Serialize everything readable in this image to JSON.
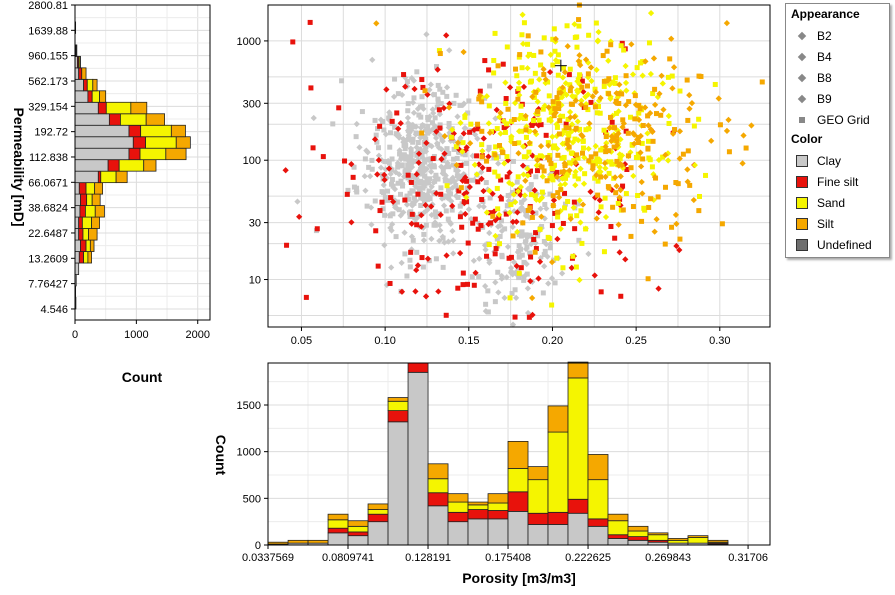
{
  "legend": {
    "appearance_header": "Appearance",
    "appearance_items": [
      {
        "label": "B2",
        "symbol": "diamond"
      },
      {
        "label": "B4",
        "symbol": "diamond"
      },
      {
        "label": "B8",
        "symbol": "diamond"
      },
      {
        "label": "B9",
        "symbol": "diamond"
      },
      {
        "label": "GEO Grid",
        "symbol": "square"
      }
    ],
    "color_header": "Color",
    "color_items": [
      {
        "label": "Clay",
        "color": "#c8c8c8"
      },
      {
        "label": "Fine silt",
        "color": "#e8120c"
      },
      {
        "label": "Sand",
        "color": "#f5f500"
      },
      {
        "label": "Silt",
        "color": "#f5a800"
      },
      {
        "label": "Undefined",
        "color": "#6e6e6e"
      }
    ]
  },
  "chart_data": [
    {
      "type": "scatter",
      "title": "",
      "xlim": [
        0.03,
        0.33
      ],
      "ylim": [
        4.0,
        2000
      ],
      "yscale": "log",
      "x_ticks": [
        "0.05",
        "0.10",
        "0.15",
        "0.20",
        "0.25",
        "0.30"
      ],
      "y_ticks": [
        "10",
        "30",
        "100",
        "300",
        "1000"
      ],
      "grid": true,
      "clusters": [
        {
          "name": "Clay",
          "color": "#c8c8c8",
          "center_x": 0.12,
          "center_logk": 1.95,
          "spread_x": 0.018,
          "spread_logk": 0.35,
          "count": 520
        },
        {
          "name": "Clay",
          "color": "#c8c8c8",
          "center_x": 0.18,
          "center_logk": 1.3,
          "spread_x": 0.015,
          "spread_logk": 0.3,
          "count": 160
        },
        {
          "name": "Fine silt",
          "color": "#e8120c",
          "center_x": 0.16,
          "center_logk": 1.8,
          "spread_x": 0.05,
          "spread_logk": 0.55,
          "count": 260
        },
        {
          "name": "Sand",
          "color": "#f5f500",
          "center_x": 0.21,
          "center_logk": 2.2,
          "spread_x": 0.03,
          "spread_logk": 0.45,
          "count": 420
        },
        {
          "name": "Silt",
          "color": "#f5a800",
          "center_x": 0.23,
          "center_logk": 2.2,
          "spread_x": 0.04,
          "spread_logk": 0.45,
          "count": 300
        }
      ],
      "marker_plus": [
        0.205,
        620
      ]
    },
    {
      "type": "bar",
      "orientation": "vertical",
      "stacked": true,
      "xlabel": "Porosity [m3/m3]",
      "ylabel": "Count",
      "ylim": [
        0,
        1950
      ],
      "x_range": [
        0.0337569,
        0.33
      ],
      "x_ticks": [
        "0.0337569",
        "0.0809741",
        "0.128191",
        "0.175408",
        "0.222625",
        "0.269843",
        "0.31706"
      ],
      "y_ticks": [
        "0",
        "500",
        "1000",
        "1500"
      ],
      "bin_edges": [
        0.0338,
        0.0456,
        0.0574,
        0.0692,
        0.081,
        0.0928,
        0.1046,
        0.1164,
        0.1282,
        0.14,
        0.1518,
        0.1636,
        0.1754,
        0.1872,
        0.199,
        0.2108,
        0.2226,
        0.2344,
        0.2462,
        0.258,
        0.2698,
        0.2816,
        0.2934,
        0.3052,
        0.317
      ],
      "series": [
        {
          "name": "Clay",
          "color": "#c8c8c8",
          "values": [
            10,
            20,
            20,
            130,
            100,
            250,
            1320,
            1850,
            420,
            250,
            280,
            280,
            360,
            220,
            220,
            340,
            200,
            70,
            50,
            30,
            20,
            20,
            10,
            0
          ]
        },
        {
          "name": "Fine silt",
          "color": "#e8120c",
          "values": [
            0,
            0,
            0,
            50,
            40,
            80,
            120,
            100,
            140,
            100,
            100,
            90,
            210,
            120,
            130,
            150,
            80,
            40,
            40,
            20,
            0,
            0,
            10,
            0
          ]
        },
        {
          "name": "Sand",
          "color": "#f5f500",
          "values": [
            0,
            0,
            0,
            90,
            60,
            50,
            100,
            0,
            150,
            110,
            50,
            80,
            250,
            360,
            860,
            1300,
            420,
            150,
            60,
            60,
            30,
            60,
            10,
            0
          ]
        },
        {
          "name": "Silt",
          "color": "#f5a800",
          "values": [
            20,
            30,
            30,
            60,
            60,
            60,
            40,
            0,
            160,
            90,
            30,
            100,
            290,
            140,
            280,
            170,
            270,
            70,
            50,
            20,
            20,
            20,
            20,
            0
          ]
        }
      ]
    },
    {
      "type": "bar",
      "orientation": "horizontal",
      "stacked": true,
      "xlabel": "Count",
      "ylabel": "Permeability [mD]",
      "yscale": "log",
      "xlim": [
        0,
        2200
      ],
      "ylim": [
        3.6,
        2800.81
      ],
      "x_ticks": [
        "0",
        "1000",
        "2000"
      ],
      "y_ticks": [
        "2800.81",
        "1639.88",
        "960.155",
        "562.173",
        "329.154",
        "192.72",
        "112.838",
        "66.0671",
        "38.6824",
        "22.6487",
        "13.2609",
        "7.76427",
        "4.546"
      ],
      "bin_edges": [
        4.546,
        5.8,
        7.4,
        9.4,
        12.0,
        15.3,
        19.5,
        24.9,
        31.7,
        40.4,
        51.5,
        65.6,
        83.6,
        106.6,
        135.8,
        173.1,
        220.6,
        281.2,
        358.4,
        456.8,
        582.2,
        742.0,
        945.7,
        1205.3,
        1536.2,
        1958.0,
        2495.5
      ],
      "series": [
        {
          "name": "Clay",
          "color": "#c8c8c8",
          "values": [
            15,
            10,
            20,
            60,
            70,
            90,
            60,
            60,
            80,
            90,
            70,
            380,
            540,
            880,
            950,
            880,
            560,
            380,
            210,
            140,
            60,
            40,
            10,
            0,
            10,
            0
          ]
        },
        {
          "name": "Fine silt",
          "color": "#e8120c",
          "values": [
            0,
            0,
            0,
            0,
            70,
            90,
            70,
            60,
            90,
            100,
            110,
            40,
            180,
            180,
            200,
            190,
            180,
            130,
            70,
            60,
            50,
            20,
            10,
            0,
            0,
            0
          ]
        },
        {
          "name": "Sand",
          "color": "#f5f500",
          "values": [
            0,
            0,
            0,
            0,
            70,
            70,
            90,
            150,
            160,
            90,
            140,
            250,
            400,
            420,
            500,
            500,
            420,
            400,
            120,
            90,
            0,
            20,
            0,
            0,
            0,
            0
          ]
        },
        {
          "name": "Silt",
          "color": "#f5a800",
          "values": [
            0,
            0,
            0,
            0,
            60,
            60,
            140,
            130,
            150,
            130,
            130,
            180,
            200,
            330,
            230,
            230,
            300,
            260,
            100,
            70,
            70,
            10,
            10,
            0,
            0,
            0
          ]
        }
      ]
    }
  ]
}
